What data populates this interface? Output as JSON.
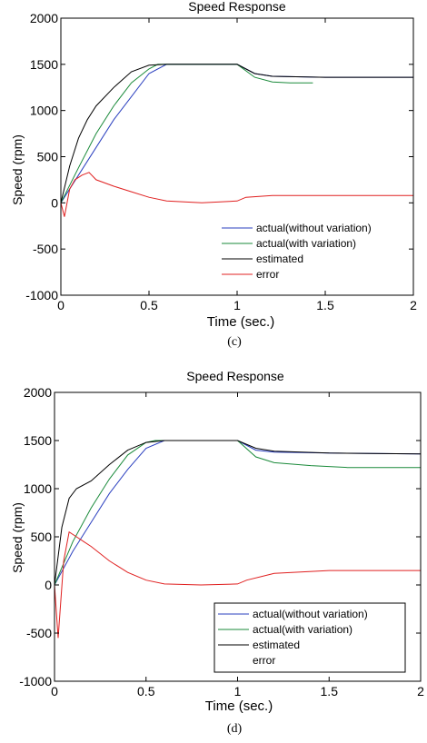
{
  "chart_data": [
    {
      "type": "line",
      "panel": "(c)",
      "title": "Speed Response",
      "xlabel": "Time (sec.)",
      "ylabel": "Speed (rpm)",
      "xlim": [
        0,
        2
      ],
      "ylim": [
        -1000,
        2000
      ],
      "xticks": [
        "0",
        "0.5",
        "1",
        "1.5",
        "2"
      ],
      "yticks": [
        "-1000",
        "-500",
        "0",
        "500",
        "1000",
        "1500",
        "2000"
      ],
      "grid": false,
      "legend_position": "bottom-right",
      "series": [
        {
          "name": "actual(without variation)",
          "color": "#2a3fbf",
          "x": [
            0,
            0.1,
            0.2,
            0.3,
            0.4,
            0.5,
            0.6,
            0.8,
            1.0,
            1.1,
            1.2,
            1.5,
            2.0
          ],
          "y": [
            0,
            300,
            600,
            900,
            1150,
            1400,
            1500,
            1500,
            1500,
            1400,
            1370,
            1360,
            1360
          ]
        },
        {
          "name": "actual(with variation)",
          "color": "#1a8a3a",
          "x": [
            0,
            0.1,
            0.2,
            0.3,
            0.4,
            0.5,
            0.55,
            0.8,
            1.0,
            1.1,
            1.2,
            1.3,
            1.43
          ],
          "y": [
            0,
            380,
            750,
            1050,
            1300,
            1450,
            1500,
            1500,
            1500,
            1360,
            1310,
            1300,
            1300
          ]
        },
        {
          "name": "estimated",
          "color": "#000000",
          "x": [
            0,
            0.05,
            0.1,
            0.15,
            0.2,
            0.3,
            0.4,
            0.5,
            0.6,
            0.8,
            1.0,
            1.1,
            1.2,
            1.5,
            2.0
          ],
          "y": [
            0,
            400,
            700,
            900,
            1050,
            1250,
            1420,
            1490,
            1500,
            1500,
            1500,
            1400,
            1370,
            1360,
            1360
          ]
        },
        {
          "name": "error",
          "color": "#e02020",
          "x": [
            0,
            0.02,
            0.05,
            0.08,
            0.12,
            0.16,
            0.2,
            0.3,
            0.4,
            0.5,
            0.6,
            0.8,
            1.0,
            1.05,
            1.2,
            1.5,
            2.0
          ],
          "y": [
            0,
            -150,
            150,
            250,
            300,
            330,
            250,
            180,
            120,
            60,
            20,
            0,
            20,
            60,
            80,
            80,
            80
          ]
        }
      ]
    },
    {
      "type": "line",
      "panel": "(d)",
      "title": "Speed Response",
      "xlabel": "Time (sec.)",
      "ylabel": "Speed (rpm)",
      "xlim": [
        0,
        2
      ],
      "ylim": [
        -1000,
        2000
      ],
      "xticks": [
        "0",
        "0.5",
        "1",
        "1.5",
        "2"
      ],
      "yticks": [
        "-1000",
        "-500",
        "0",
        "500",
        "1000",
        "1500",
        "2000"
      ],
      "grid": false,
      "legend_position": "bottom-right",
      "series": [
        {
          "name": "actual(without variation)",
          "color": "#2a3fbf",
          "x": [
            0,
            0.1,
            0.2,
            0.3,
            0.4,
            0.5,
            0.6,
            0.8,
            1.0,
            1.1,
            1.2,
            1.5,
            2.0
          ],
          "y": [
            0,
            350,
            650,
            950,
            1200,
            1420,
            1500,
            1500,
            1500,
            1400,
            1380,
            1370,
            1360
          ]
        },
        {
          "name": "actual(with variation)",
          "color": "#1a8a3a",
          "x": [
            0,
            0.1,
            0.2,
            0.3,
            0.4,
            0.5,
            0.55,
            0.8,
            1.0,
            1.1,
            1.2,
            1.4,
            1.6,
            2.0
          ],
          "y": [
            0,
            450,
            800,
            1100,
            1350,
            1480,
            1500,
            1500,
            1500,
            1330,
            1270,
            1240,
            1220,
            1220
          ]
        },
        {
          "name": "estimated",
          "color": "#000000",
          "x": [
            0,
            0.04,
            0.08,
            0.12,
            0.2,
            0.3,
            0.4,
            0.5,
            0.6,
            0.8,
            1.0,
            1.1,
            1.2,
            1.5,
            2.0
          ],
          "y": [
            0,
            600,
            900,
            1000,
            1080,
            1250,
            1400,
            1480,
            1500,
            1500,
            1500,
            1420,
            1390,
            1370,
            1360
          ]
        },
        {
          "name": "error",
          "color": "#e02020",
          "x": [
            0,
            0.02,
            0.05,
            0.08,
            0.12,
            0.16,
            0.2,
            0.3,
            0.4,
            0.5,
            0.6,
            0.8,
            1.0,
            1.05,
            1.2,
            1.5,
            2.0
          ],
          "y": [
            0,
            -550,
            250,
            550,
            500,
            450,
            400,
            250,
            130,
            50,
            10,
            0,
            10,
            50,
            120,
            150,
            150
          ]
        }
      ]
    }
  ]
}
